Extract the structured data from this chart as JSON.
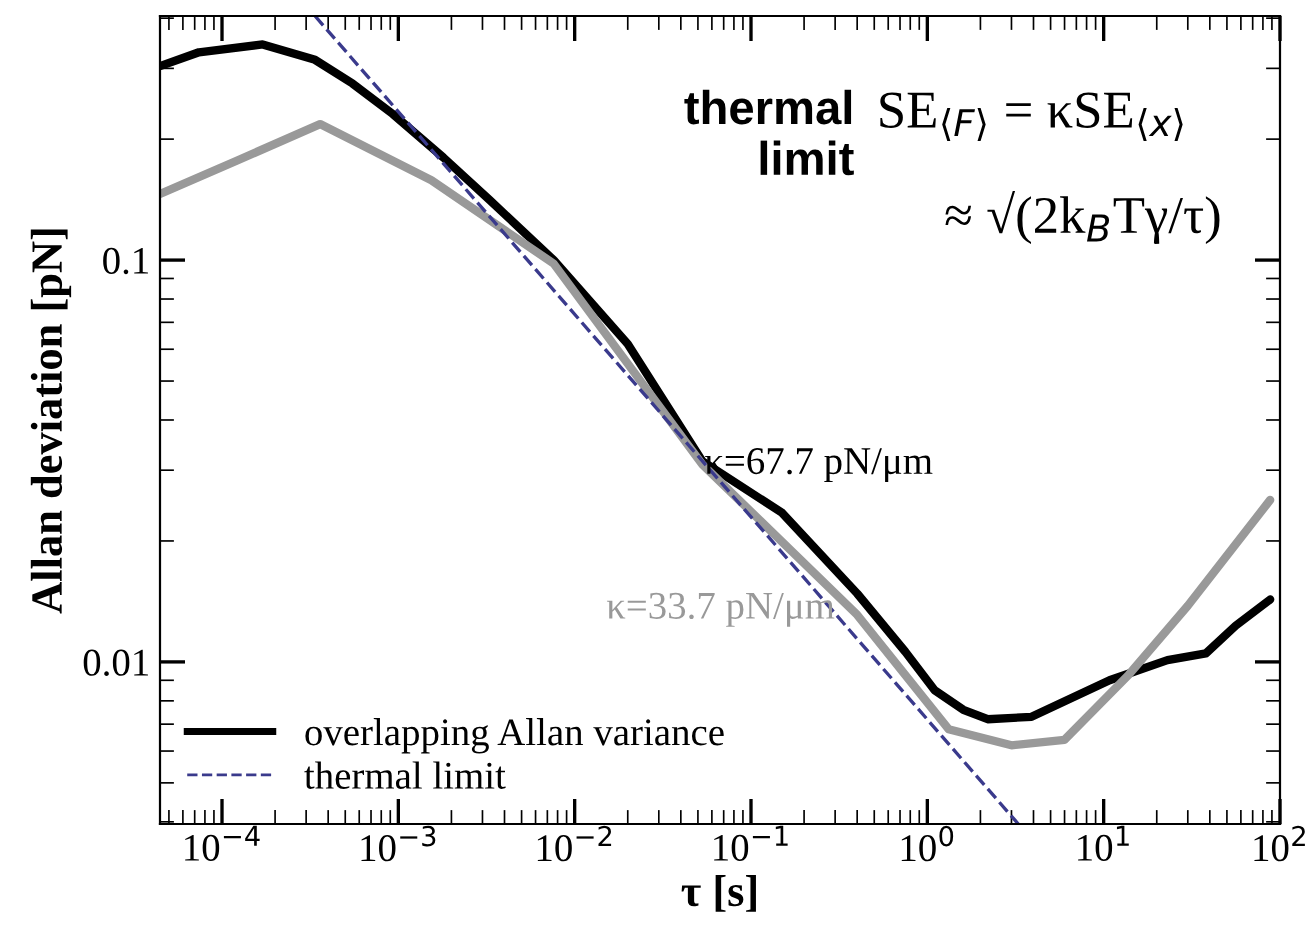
{
  "chart_data": {
    "type": "line",
    "xlabel": "τ [s]",
    "ylabel": "Allan deviation [pN]",
    "log": "xy",
    "xlim": [
      4.45e-05,
      100
    ],
    "ylim": [
      0.00395,
      0.405
    ],
    "xticks": [
      {
        "value": 0.0001,
        "label": "10$^{−4}$"
      },
      {
        "value": 0.001,
        "label": "10$^{−3}$"
      },
      {
        "value": 0.01,
        "label": "10$^{−2}$"
      },
      {
        "value": 0.1,
        "label": "10$^{−1}$"
      },
      {
        "value": 1,
        "label": "10$^{0}$"
      },
      {
        "value": 10,
        "label": "10$^{1}$"
      },
      {
        "value": 100,
        "label": "10$^{2}$"
      }
    ],
    "yticks": [
      0.01,
      0.1
    ],
    "grid": false,
    "legend": "bottom left",
    "series": [
      {
        "name": "overlapping Allan variance",
        "color": "#000000",
        "line_style": "solid",
        "x": [
          4.45e-05,
          7.4e-05,
          0.00017,
          0.000337,
          0.00055,
          0.00093,
          0.0018,
          0.0033,
          0.0076,
          0.02,
          0.053,
          0.15,
          0.4,
          0.75,
          1.1,
          1.6,
          2.2,
          3.9,
          10.8,
          23,
          38,
          56,
          88
        ],
        "values": [
          0.304,
          0.329,
          0.344,
          0.315,
          0.275,
          0.231,
          0.18,
          0.141,
          0.1,
          0.0618,
          0.0316,
          0.0235,
          0.0148,
          0.0106,
          0.0085,
          0.0076,
          0.0072,
          0.0073,
          0.009,
          0.0101,
          0.0105,
          0.0123,
          0.0143
        ]
      },
      {
        "name": "κ=33.7 pN/μm",
        "color": "#999999",
        "line_style": "solid",
        "x": [
          4.45e-05,
          0.000122,
          0.00036,
          0.00154,
          0.0076,
          0.053,
          0.4,
          1.32,
          3.0,
          6.0,
          13.9,
          30,
          88
        ],
        "values": [
          0.146,
          0.177,
          0.218,
          0.158,
          0.098,
          0.031,
          0.0131,
          0.0068,
          0.0062,
          0.0064,
          0.0093,
          0.0138,
          0.0253
        ]
      },
      {
        "name": "thermal limit",
        "color": "#3a3a8c",
        "line_style": "dashed",
        "x": [
          0.000337,
          3.28
        ],
        "values": [
          0.405,
          0.00395
        ]
      }
    ],
    "annotations": [
      {
        "text": "κ=67.7 pN/μm",
        "x": 0.047,
        "y": 0.031
      },
      "thermal limit",
      "SE$_{⟨F⟩}$ = κSE$_{⟨x⟩}$",
      "≈ √(2k$_{B}$Tγ/τ)"
    ]
  }
}
